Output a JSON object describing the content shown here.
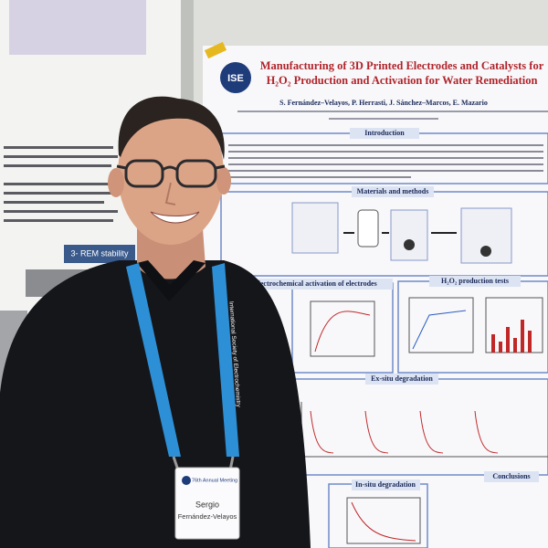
{
  "left_poster": {
    "heading": "3- REM stability"
  },
  "poster": {
    "logo": "ISE",
    "title": "Manufacturing of 3D Printed Electrodes and Catalysts for H₂O₂ Production and Activation for Water Remediation",
    "authors": "S. Fernández–Velayos, P. Herrasti, J. Sánchez–Marcos, E. Mazario",
    "sections": [
      "Introduction",
      "Materials and methods",
      "Electrochemical activation of electrodes",
      "H₂O₂ production tests",
      "Ex-situ degradation",
      "In-situ degradation",
      "Conclusions"
    ]
  },
  "lanyard": {
    "text": "International Society of Electrochemistry"
  },
  "badge": {
    "event": "76th Annual Meeting",
    "first_name": "Sergio",
    "last_name": "Fernández-Velayos"
  }
}
